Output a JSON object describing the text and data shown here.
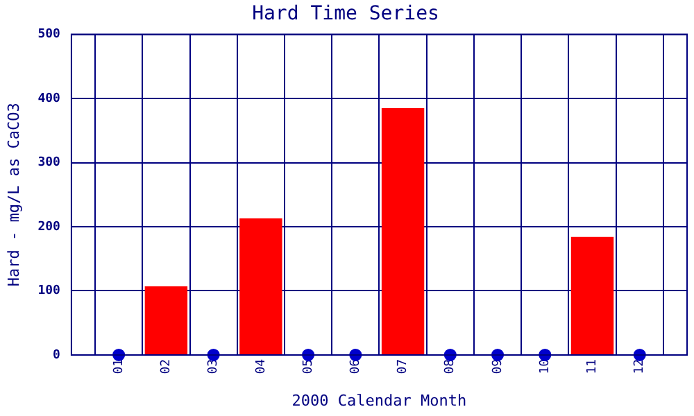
{
  "chart_data": {
    "type": "bar",
    "title": "Hard Time Series",
    "xlabel": "2000 Calendar Month",
    "ylabel": "Hard - mg/L as CaCO3",
    "categories": [
      "01",
      "02",
      "03",
      "04",
      "05",
      "06",
      "07",
      "08",
      "09",
      "10",
      "11",
      "12"
    ],
    "series": [
      {
        "color": "#ff0000",
        "values": [
          null,
          107,
          null,
          213,
          null,
          null,
          385,
          null,
          null,
          null,
          184,
          null
        ]
      },
      {
        "type": "scatter",
        "color": "#0000cc",
        "values": [
          0,
          null,
          0,
          null,
          0,
          0,
          null,
          0,
          0,
          0,
          null,
          0
        ]
      }
    ],
    "ylim": [
      0,
      500
    ],
    "yticks": [
      0,
      100,
      200,
      300,
      400,
      500
    ],
    "grid": true,
    "marker": "circle",
    "legend": false
  }
}
